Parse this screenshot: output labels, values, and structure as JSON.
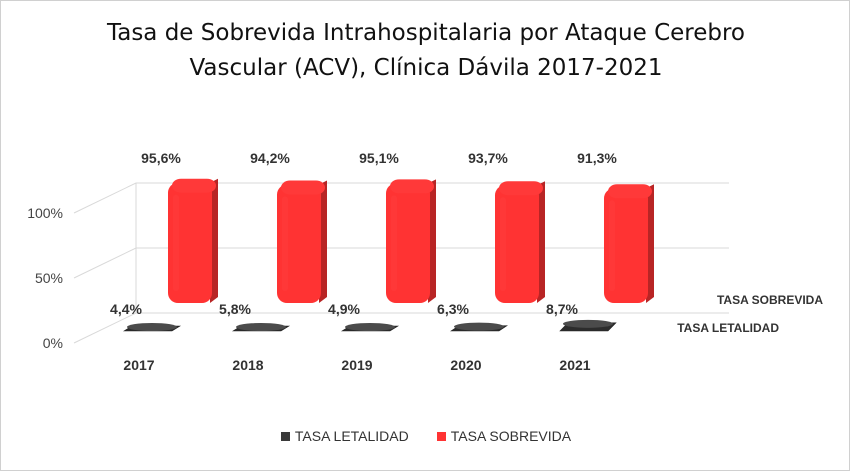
{
  "chart_data": {
    "type": "bar",
    "title": "Tasa de Sobrevida Intrahospitalaria por Ataque Cerebro Vascular (ACV), Clínica Dávila 2017-2021",
    "title_lines": [
      "Tasa de Sobrevida Intrahospitalaria por Ataque Cerebro",
      "Vascular (ACV), Clínica Dávila 2017-2021"
    ],
    "categories": [
      "2017",
      "2018",
      "2019",
      "2020",
      "2021"
    ],
    "series": [
      {
        "name": "TASA LETALIDAD",
        "values": [
          4.4,
          5.8,
          4.9,
          6.3,
          8.7
        ],
        "labels": [
          "4,4%",
          "5,8%",
          "4,9%",
          "6,3%",
          "8,7%"
        ],
        "color": "#3a3a3a"
      },
      {
        "name": "TASA SOBREVIDA",
        "values": [
          95.6,
          94.2,
          95.1,
          93.7,
          91.3
        ],
        "labels": [
          "95,6%",
          "94,2%",
          "95,1%",
          "93,7%",
          "91,3%"
        ],
        "color": "#ff3333"
      }
    ],
    "y_ticks": [
      "0%",
      "50%",
      "100%"
    ],
    "ylim": [
      0,
      100
    ],
    "three_d": true,
    "grid": true,
    "legend_position": "bottom"
  }
}
